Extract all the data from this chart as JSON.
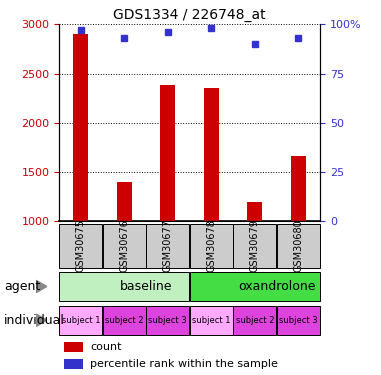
{
  "title": "GDS1334 / 226748_at",
  "samples": [
    "GSM30675",
    "GSM30676",
    "GSM30677",
    "GSM30678",
    "GSM30679",
    "GSM30680"
  ],
  "counts": [
    2900,
    1400,
    2380,
    2350,
    1200,
    1660
  ],
  "percentiles": [
    97,
    93,
    96,
    98,
    90,
    93
  ],
  "ylim_left": [
    1000,
    3000
  ],
  "ylim_right": [
    0,
    100
  ],
  "yticks_left": [
    1000,
    1500,
    2000,
    2500,
    3000
  ],
  "yticks_right": [
    0,
    25,
    50,
    75,
    100
  ],
  "bar_color": "#cc0000",
  "dot_color": "#3333cc",
  "bar_width": 0.35,
  "agent_info": [
    {
      "label": "baseline",
      "color": "#c0f0c0",
      "start": 0,
      "end": 3
    },
    {
      "label": "oxandrolone",
      "color": "#44dd44",
      "start": 3,
      "end": 6
    }
  ],
  "indiv_colors": [
    "#ffaaff",
    "#dd44dd",
    "#dd44dd",
    "#ffaaff",
    "#dd44dd",
    "#dd44dd"
  ],
  "indiv_labels": [
    "subject 1",
    "subject 2",
    "subject 3",
    "subject 1",
    "subject 2",
    "subject 3"
  ],
  "sample_box_color": "#cccccc",
  "left_label_color": "#cc0000",
  "right_label_color": "#3333cc",
  "title_fontsize": 10,
  "tick_fontsize": 8,
  "legend_fontsize": 8,
  "row_label_fontsize": 9,
  "sample_fontsize": 7
}
